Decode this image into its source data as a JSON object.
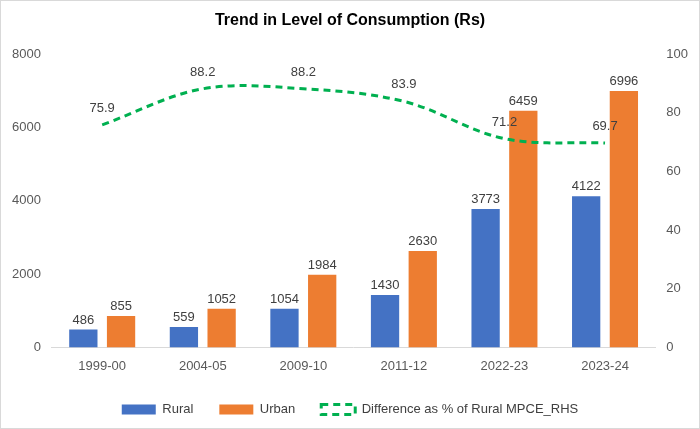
{
  "chart_data": {
    "type": "bar",
    "title": "Trend in Level of Consumption (Rs)",
    "categories": [
      "1999-00",
      "2004-05",
      "2009-10",
      "2011-12",
      "2022-23",
      "2023-24"
    ],
    "series": [
      {
        "name": "Rural",
        "color": "#4472c4",
        "values": [
          486,
          559,
          1054,
          1430,
          3773,
          4122
        ]
      },
      {
        "name": "Urban",
        "color": "#ed7d31",
        "values": [
          855,
          1052,
          1984,
          2630,
          6459,
          6996
        ]
      },
      {
        "name": "Difference as % of Rural MPCE_RHS",
        "type": "line",
        "axis": "y2",
        "color": "#00b050",
        "line_style": "dashed",
        "values": [
          75.9,
          88.2,
          88.2,
          83.9,
          71.2,
          69.7
        ]
      }
    ],
    "ylim": [
      0,
      8000
    ],
    "yticks": [
      0,
      2000,
      4000,
      6000,
      8000
    ],
    "y2lim": [
      0,
      100
    ],
    "y2ticks": [
      0,
      20,
      40,
      60,
      80,
      100
    ],
    "grid": false,
    "legend": "bottom",
    "data_labels": true
  }
}
